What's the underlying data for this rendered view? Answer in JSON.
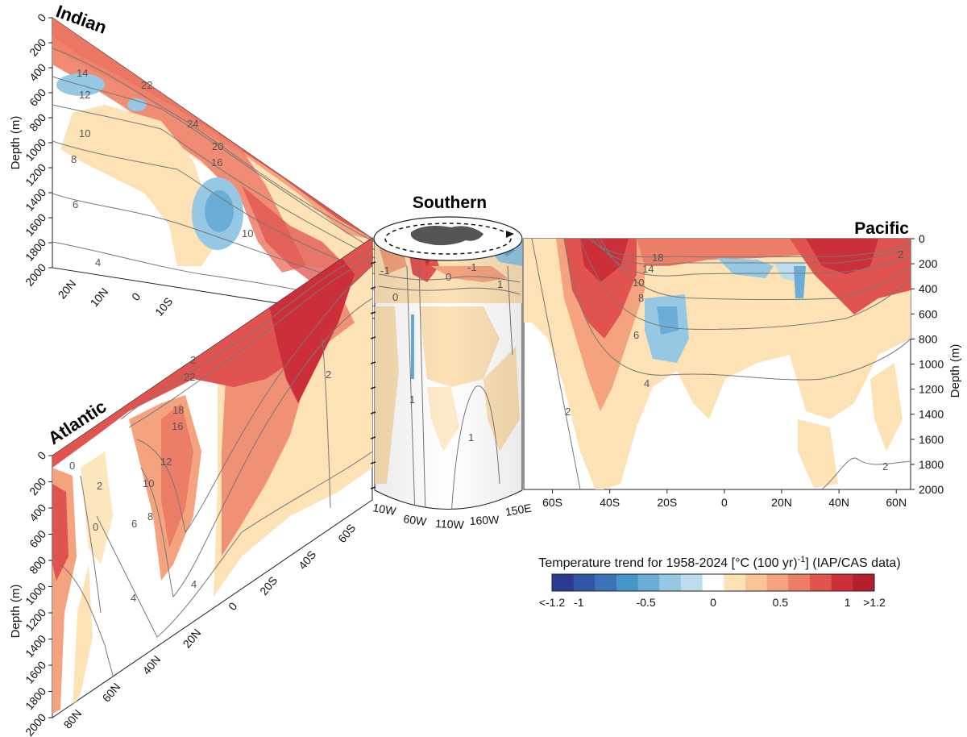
{
  "chart_data": {
    "type": "heatmap",
    "description_units": "Temperature trend for 1958-2024 [°C (100 yr)-1] (IAP/CAS data)",
    "colorbar": {
      "title": "Temperature trend for 1958-2024 [°C (100 yr)",
      "title_sup": "-1",
      "title_tail": "] (IAP/CAS data)",
      "tick_labels": [
        "<-1.2",
        "-1",
        "-0.5",
        "0",
        "0.5",
        "1",
        ">1.2"
      ],
      "tick_values": [
        -1.2,
        -1,
        -0.5,
        0,
        0.5,
        1,
        1.2
      ],
      "colors": [
        "#2b3a93",
        "#3256a7",
        "#3a74b6",
        "#4596c9",
        "#6aaed8",
        "#96c8e4",
        "#bddcec",
        "#ffffff",
        "#fde2b6",
        "#f9c597",
        "#f4a37e",
        "#ec7d67",
        "#e0534f",
        "#cc2f3a",
        "#b41f2c"
      ]
    },
    "panels": [
      {
        "name": "Indian",
        "y_label": "Depth (m)",
        "y_ticks": [
          "0",
          "200",
          "400",
          "600",
          "800",
          "1000",
          "1200",
          "1400",
          "1600",
          "1800",
          "2000"
        ],
        "x_ticks": [
          "20N",
          "10N",
          "0",
          "10S"
        ],
        "contour_labels": [
          "14",
          "12",
          "10",
          "8",
          "6",
          "4",
          "20",
          "22",
          "24",
          "16",
          "10",
          "0"
        ]
      },
      {
        "name": "Atlantic",
        "y_label": "Depth (m)",
        "y_ticks": [
          "0",
          "200",
          "400",
          "600",
          "800",
          "1000",
          "1200",
          "1400",
          "1600",
          "1800",
          "2000"
        ],
        "x_ticks": [
          "80N",
          "60N",
          "40N",
          "20N",
          "0",
          "20S",
          "40S",
          "60S"
        ],
        "contour_labels": [
          "0",
          "2",
          "0",
          "4",
          "6",
          "8",
          "10",
          "12",
          "16",
          "18",
          "22",
          "2",
          "4",
          "2"
        ]
      },
      {
        "name": "Southern",
        "x_ticks": [
          "10W",
          "60W",
          "110W",
          "160W",
          "150E"
        ],
        "contour_labels": [
          "-1",
          "0",
          "-1",
          "0",
          "1",
          "1",
          "1",
          "0"
        ]
      },
      {
        "name": "Pacific",
        "y_label": "Depth (m)",
        "y_ticks": [
          "0",
          "200",
          "400",
          "600",
          "800",
          "1000",
          "1200",
          "1400",
          "1600",
          "1800",
          "2000"
        ],
        "x_ticks": [
          "60S",
          "40S",
          "20S",
          "0",
          "20N",
          "40N",
          "60N"
        ],
        "x_values": [
          -60,
          -40,
          -20,
          0,
          20,
          40,
          60
        ],
        "ylim": [
          2000,
          0
        ],
        "contour_labels": [
          "18",
          "14",
          "10",
          "8",
          "6",
          "4",
          "2",
          "2",
          "2",
          "0"
        ]
      }
    ]
  }
}
